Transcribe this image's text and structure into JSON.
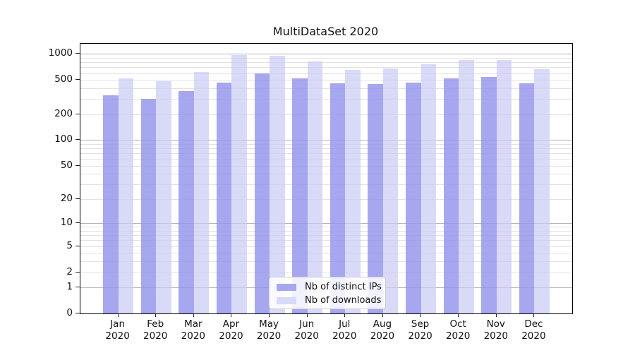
{
  "title": "MultiDataSet 2020",
  "chart_data": {
    "type": "bar",
    "title": "MultiDataSet 2020",
    "categories": [
      "Jan 2020",
      "Feb 2020",
      "Mar 2020",
      "Apr 2020",
      "May 2020",
      "Jun 2020",
      "Jul 2020",
      "Aug 2020",
      "Sep 2020",
      "Oct 2020",
      "Nov 2020",
      "Dec 2020"
    ],
    "series": [
      {
        "name": "Nb of distinct IPs",
        "color": "#a7a7f0",
        "values": [
          330,
          300,
          375,
          470,
          590,
          525,
          455,
          445,
          470,
          520,
          540,
          460
        ]
      },
      {
        "name": "Nb of downloads",
        "color": "#d9d9f8",
        "values": [
          525,
          485,
          615,
          965,
          950,
          820,
          650,
          685,
          760,
          850,
          850,
          660
        ]
      }
    ],
    "yscale": "symlog (position proportional to log10(1+value))",
    "yticks": [
      0,
      1,
      2,
      5,
      10,
      20,
      50,
      100,
      200,
      500,
      1000
    ],
    "ylim": [
      0,
      1311
    ],
    "xlabel": "",
    "ylabel": "",
    "grid": "horizontal major (1,10,100,1000) and minor (2-9 per decade)",
    "legend_position": "lower center, inside plot",
    "colors": {
      "major_grid": "#c6c6c6",
      "minor_grid": "#ebebeb",
      "axis": "#000000",
      "background": "#ffffff"
    }
  }
}
